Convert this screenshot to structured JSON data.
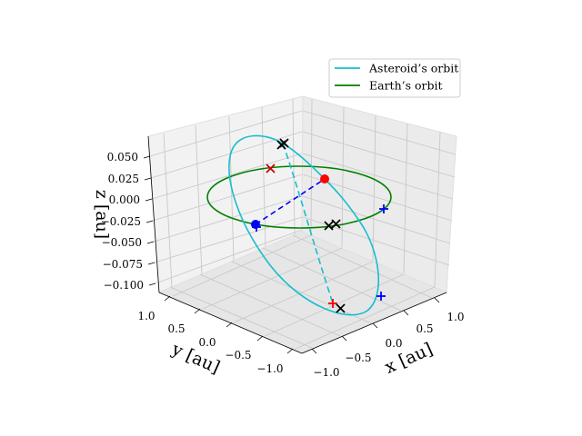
{
  "chart_data": {
    "type": "line",
    "projection": "3d",
    "xlabel": "x [au]",
    "ylabel": "y [au]",
    "zlabel": "z [au]",
    "x_ticks": [
      "−1.0",
      "−0.5",
      "0.0",
      "0.5",
      "1.0"
    ],
    "y_ticks": [
      "1.0",
      "0.5",
      "0.0",
      "−0.5",
      "−1.0"
    ],
    "z_ticks": [
      "0.050",
      "0.025",
      "0.000",
      "−0.025",
      "−0.050",
      "−0.075",
      "−0.100"
    ],
    "grid": true,
    "legend_position": "top-right",
    "series": [
      {
        "name": "Asteroid’s orbit",
        "color": "#17becf",
        "kind": "ellipse",
        "far_side_style": "dashed"
      },
      {
        "name": "Earth’s orbit",
        "color": "#008000",
        "kind": "circle",
        "radius_au": 1.0
      }
    ],
    "markers": [
      {
        "kind": "dot",
        "color": "#ff0000",
        "label": "asteroid position"
      },
      {
        "kind": "dot",
        "color": "#0000ff",
        "label": "earth position"
      },
      {
        "kind": "x",
        "color": "#000000",
        "count": 5
      },
      {
        "kind": "x",
        "color": "#ff0000",
        "count": 1
      },
      {
        "kind": "plus",
        "color": "#0000ff",
        "count": 3
      },
      {
        "kind": "plus",
        "color": "#ff0000",
        "count": 1
      }
    ],
    "connector": {
      "style": "dashed",
      "color": "#0000ff",
      "from": "earth position",
      "to": "asteroid position"
    }
  }
}
